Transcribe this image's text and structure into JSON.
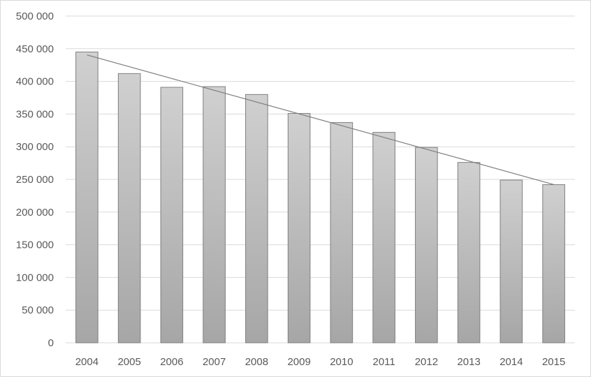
{
  "chart_data": {
    "type": "bar",
    "categories": [
      "2004",
      "2005",
      "2006",
      "2007",
      "2008",
      "2009",
      "2010",
      "2011",
      "2012",
      "2013",
      "2014",
      "2015"
    ],
    "values": [
      445000,
      412000,
      391000,
      392000,
      380000,
      351000,
      337000,
      322000,
      299000,
      276000,
      249000,
      242000
    ],
    "ylim": [
      0,
      500000
    ],
    "y_ticks": [
      0,
      50000,
      100000,
      150000,
      200000,
      250000,
      300000,
      350000,
      400000,
      450000,
      500000
    ],
    "y_tick_labels": [
      "0",
      "50 000",
      "100 000",
      "150 000",
      "200 000",
      "250 000",
      "300 000",
      "350 000",
      "400 000",
      "450 000",
      "500 000"
    ],
    "trendline": {
      "type": "linear",
      "shown": true
    },
    "grid": true,
    "legend": "none",
    "colors": {
      "bar_fill_top": "#d0d0d0",
      "bar_fill_bottom": "#a6a6a6",
      "bar_border": "#7f7f7f",
      "trendline": "#7f7f7f",
      "gridline": "#d9d9d9",
      "text": "#595959"
    }
  }
}
